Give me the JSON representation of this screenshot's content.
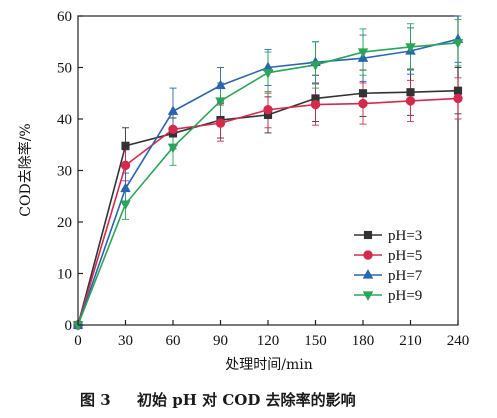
{
  "chart_data": {
    "type": "line",
    "title": "",
    "xlabel": "处理时间/min",
    "ylabel": "COD去除率/%",
    "xlim": [
      0,
      240
    ],
    "ylim": [
      0,
      60
    ],
    "x_ticks": [
      "0",
      "30",
      "60",
      "90",
      "120",
      "150",
      "180",
      "210",
      "240"
    ],
    "y_ticks": [
      "0",
      "10",
      "20",
      "30",
      "40",
      "50",
      "60"
    ],
    "x": [
      0,
      30,
      60,
      90,
      120,
      150,
      180,
      210,
      240
    ],
    "grid": false,
    "legend_position": "bottom-right",
    "series": [
      {
        "name": "pH=3",
        "color": "#333333",
        "marker": "square",
        "values": [
          0,
          34.8,
          37.2,
          39.8,
          40.8,
          44.0,
          45.0,
          45.2,
          45.5
        ],
        "errors": [
          0,
          3.5,
          3.0,
          3.5,
          3.5,
          4.5,
          4.5,
          4.5,
          4.5
        ]
      },
      {
        "name": "pH=5",
        "color": "#d42a4e",
        "marker": "circle",
        "values": [
          0,
          31.0,
          38.0,
          39.2,
          41.8,
          42.8,
          43.0,
          43.5,
          44.0
        ],
        "errors": [
          0,
          3.0,
          3.0,
          3.5,
          3.5,
          4.0,
          4.0,
          4.0,
          4.0
        ]
      },
      {
        "name": "pH=7",
        "color": "#2b65ad",
        "marker": "triangle-up",
        "values": [
          0,
          26.5,
          41.5,
          46.5,
          50.0,
          51.0,
          51.8,
          53.2,
          55.5
        ],
        "errors": [
          0,
          3.0,
          4.5,
          3.5,
          3.5,
          4.0,
          4.5,
          4.5,
          4.5
        ]
      },
      {
        "name": "pH=9",
        "color": "#2aa55a",
        "marker": "triangle-down",
        "values": [
          0,
          23.5,
          34.5,
          43.5,
          49.0,
          50.5,
          53.0,
          54.0,
          54.8
        ],
        "errors": [
          0,
          3.0,
          3.5,
          3.5,
          4.0,
          4.5,
          4.5,
          4.5,
          4.5
        ]
      }
    ]
  },
  "caption": {
    "label": "图 3",
    "text": "初始 pH 对 COD 去除率的影响"
  }
}
